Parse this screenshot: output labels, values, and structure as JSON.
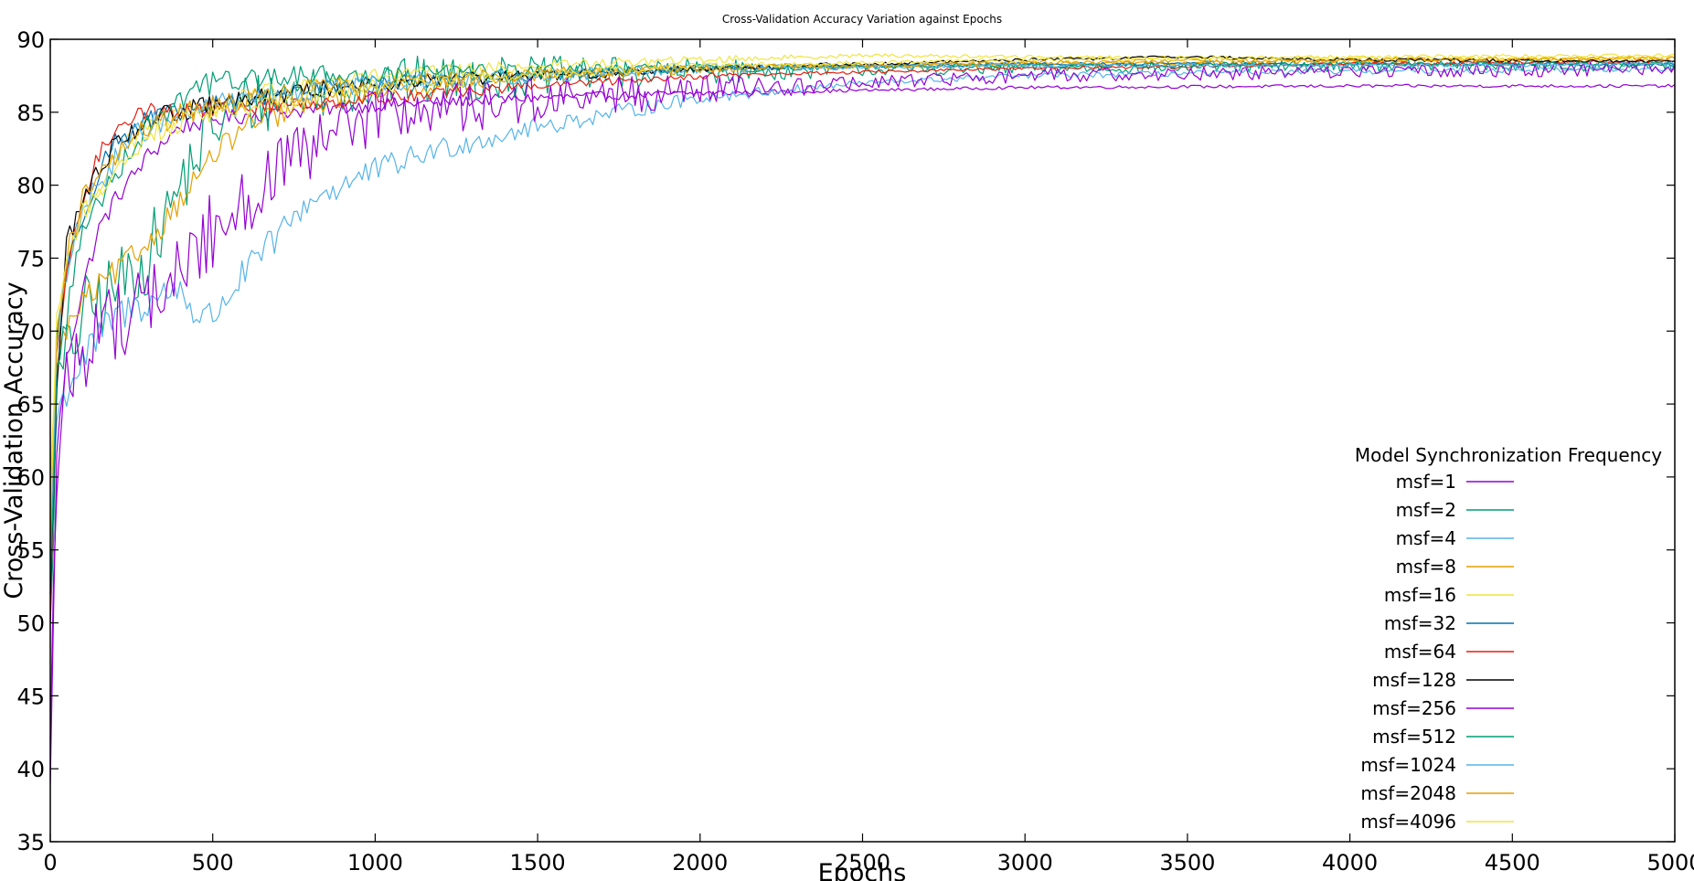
{
  "chart_data": {
    "type": "line",
    "title": "Cross-Validation Accuracy Variation against Epochs",
    "xlabel": "Epochs",
    "ylabel": "Cross-Validation Accuracy",
    "xlim": [
      0,
      5000
    ],
    "ylim": [
      35,
      90
    ],
    "xticks": [
      0,
      500,
      1000,
      1500,
      2000,
      2500,
      3000,
      3500,
      4000,
      4500,
      5000
    ],
    "yticks": [
      35,
      40,
      45,
      50,
      55,
      60,
      65,
      70,
      75,
      80,
      85,
      90
    ],
    "grid": false,
    "legend": {
      "title": "Model Synchronization Frequency",
      "placement": "bottom-right"
    },
    "series": [
      {
        "name": "msf=1",
        "color": "#9400d3",
        "x": [
          0,
          20,
          50,
          100,
          150,
          200,
          300,
          400,
          500,
          700,
          1000,
          1500,
          2000,
          2500,
          3000,
          4000,
          5000
        ],
        "y": [
          39,
          62,
          68,
          73,
          77,
          79,
          82,
          84,
          84.5,
          85,
          85.5,
          86,
          86.3,
          86.5,
          86.7,
          86.8,
          86.8
        ]
      },
      {
        "name": "msf=2",
        "color": "#009e73",
        "x": [
          0,
          20,
          50,
          100,
          200,
          300,
          400,
          500,
          600,
          800,
          1000,
          1500,
          2000,
          3000,
          4000,
          5000
        ],
        "y": [
          50,
          66,
          68,
          71,
          73,
          75,
          80,
          84,
          85.5,
          86.5,
          87,
          87.5,
          87.8,
          88,
          88.2,
          88.2
        ]
      },
      {
        "name": "msf=4",
        "color": "#56b4e9",
        "x": [
          0,
          20,
          50,
          100,
          200,
          300,
          400,
          450,
          500,
          600,
          800,
          1000,
          1200,
          1500,
          2000,
          2500,
          3000,
          4000,
          5000
        ],
        "y": [
          55,
          64,
          66,
          68,
          71,
          72,
          73,
          71,
          71,
          74,
          79,
          81,
          82.5,
          84,
          86,
          87,
          87.5,
          87.8,
          88
        ]
      },
      {
        "name": "msf=8",
        "color": "#e69f00",
        "x": [
          0,
          20,
          50,
          100,
          200,
          300,
          400,
          500,
          600,
          800,
          1000,
          1500,
          2000,
          3000,
          4000,
          5000
        ],
        "y": [
          58,
          68,
          70,
          72,
          74,
          76,
          79,
          82,
          84,
          85.5,
          86.5,
          87.5,
          88,
          88.3,
          88.5,
          88.7
        ]
      },
      {
        "name": "msf=16",
        "color": "#f0e442",
        "x": [
          0,
          20,
          50,
          100,
          200,
          300,
          500,
          800,
          1000,
          1500,
          2000,
          2500,
          3000,
          4000,
          5000
        ],
        "y": [
          60,
          70,
          74,
          78,
          82,
          84,
          85.5,
          87,
          87.5,
          88.2,
          88.6,
          88.9,
          88.8,
          88.7,
          88.7
        ]
      },
      {
        "name": "msf=32",
        "color": "#0072b2",
        "x": [
          0,
          20,
          50,
          100,
          150,
          200,
          300,
          500,
          800,
          1000,
          1500,
          2000,
          3000,
          4000,
          5000
        ],
        "y": [
          55,
          70,
          74,
          78,
          81,
          83,
          84.5,
          85.5,
          86.5,
          87,
          87.5,
          88,
          88.3,
          88.3,
          88.3
        ]
      },
      {
        "name": "msf=64",
        "color": "#e51e10",
        "x": [
          0,
          20,
          50,
          100,
          150,
          200,
          250,
          300,
          500,
          800,
          1000,
          1500,
          2000,
          3000,
          4000,
          5000
        ],
        "y": [
          50,
          68,
          74,
          79,
          82,
          84,
          84.8,
          85,
          85.2,
          85.6,
          86,
          86.8,
          87.5,
          88,
          88.3,
          88.5
        ]
      },
      {
        "name": "msf=128",
        "color": "#000000",
        "x": [
          0,
          20,
          50,
          100,
          150,
          200,
          300,
          500,
          800,
          1000,
          1500,
          2000,
          3000,
          3500,
          4000,
          5000
        ],
        "y": [
          52,
          66,
          76,
          79,
          81,
          83,
          84.5,
          85.5,
          86.5,
          87,
          87.5,
          88,
          88.6,
          88.8,
          88.6,
          88.5
        ]
      },
      {
        "name": "msf=256",
        "color": "#9400d3",
        "x": [
          0,
          20,
          50,
          100,
          200,
          300,
          400,
          500,
          600,
          700,
          800,
          900,
          1000,
          1200,
          1500,
          2000,
          2500,
          3000,
          4000,
          5000
        ],
        "y": [
          42,
          61,
          66,
          69,
          71,
          72,
          74,
          77,
          79,
          81,
          82,
          84,
          84.8,
          85.3,
          85.8,
          86.5,
          87,
          87.5,
          87.8,
          88
        ]
      },
      {
        "name": "msf=512",
        "color": "#009e73",
        "x": [
          0,
          20,
          50,
          100,
          200,
          300,
          400,
          450,
          500,
          600,
          800,
          1000,
          1500,
          2000,
          3000,
          4000,
          5000
        ],
        "y": [
          53,
          67,
          71,
          77,
          81,
          84,
          86,
          86.8,
          87,
          87.3,
          87.5,
          87.6,
          87.8,
          88,
          88.2,
          88.3,
          88.3
        ]
      },
      {
        "name": "msf=1024",
        "color": "#56b4e9",
        "x": [
          0,
          20,
          50,
          100,
          200,
          300,
          500,
          800,
          1000,
          1500,
          2000,
          3000,
          4000,
          5000
        ],
        "y": [
          55,
          69,
          74,
          78,
          82,
          84,
          85.5,
          86.5,
          87,
          87.5,
          88,
          88.2,
          88.2,
          88.3
        ]
      },
      {
        "name": "msf=2048",
        "color": "#e69f00",
        "x": [
          0,
          20,
          50,
          100,
          200,
          300,
          500,
          800,
          1000,
          1500,
          2000,
          3000,
          4000,
          5000
        ],
        "y": [
          56,
          70,
          75,
          79,
          82,
          84,
          85.5,
          86.5,
          87,
          87.6,
          88,
          88.4,
          88.6,
          88.7
        ]
      },
      {
        "name": "msf=4096",
        "color": "#f0e442",
        "x": [
          0,
          20,
          50,
          100,
          200,
          300,
          500,
          800,
          1000,
          1500,
          2000,
          3000,
          4000,
          5000
        ],
        "y": [
          57,
          71,
          75,
          78,
          81,
          83.5,
          85,
          86,
          86.8,
          87.6,
          88.2,
          88.6,
          88.8,
          88.9
        ]
      }
    ]
  }
}
